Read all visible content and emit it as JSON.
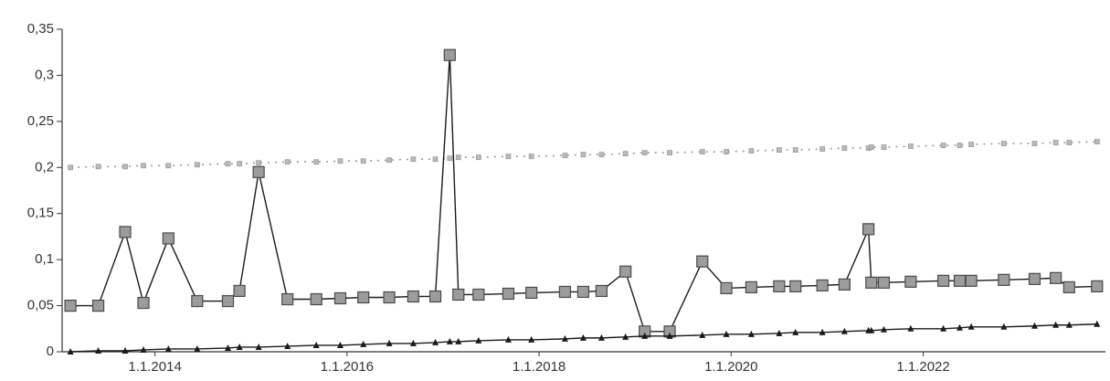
{
  "chart_data": {
    "type": "line",
    "x": [
      2013.12,
      2013.41,
      2013.69,
      2013.88,
      2014.14,
      2014.44,
      2014.76,
      2014.88,
      2015.08,
      2015.38,
      2015.68,
      2015.93,
      2016.17,
      2016.44,
      2016.69,
      2016.92,
      2017.07,
      2017.16,
      2017.37,
      2017.68,
      2017.92,
      2018.27,
      2018.46,
      2018.65,
      2018.9,
      2019.1,
      2019.36,
      2019.7,
      2019.95,
      2020.21,
      2020.5,
      2020.67,
      2020.95,
      2021.18,
      2021.43,
      2021.46,
      2021.59,
      2021.87,
      2022.21,
      2022.38,
      2022.5,
      2022.84,
      2023.16,
      2023.38,
      2023.52,
      2023.81
    ],
    "series": [
      {
        "color": "#999999",
        "line_style": "dotted",
        "marker": "dot",
        "values": [
          0.2,
          0.201,
          0.201,
          0.202,
          0.202,
          0.203,
          0.204,
          0.204,
          0.205,
          0.206,
          0.206,
          0.207,
          0.207,
          0.208,
          0.209,
          0.209,
          0.21,
          0.211,
          0.211,
          0.212,
          0.212,
          0.213,
          0.214,
          0.214,
          0.215,
          0.216,
          0.216,
          0.217,
          0.217,
          0.218,
          0.219,
          0.219,
          0.22,
          0.221,
          0.221,
          0.222,
          0.222,
          0.223,
          0.224,
          0.224,
          0.225,
          0.226,
          0.226,
          0.227,
          0.227,
          0.228
        ]
      },
      {
        "color": "#1a1a1a",
        "line_style": "solid",
        "marker": "square",
        "values": [
          0.05,
          0.05,
          0.13,
          0.053,
          0.123,
          0.055,
          0.055,
          0.066,
          0.195,
          0.057,
          0.057,
          0.058,
          0.059,
          0.059,
          0.06,
          0.06,
          0.322,
          0.062,
          0.062,
          0.063,
          0.064,
          0.065,
          0.065,
          0.066,
          0.087,
          0.022,
          0.022,
          0.098,
          0.069,
          0.07,
          0.071,
          0.071,
          0.072,
          0.073,
          0.133,
          0.075,
          0.075,
          0.076,
          0.077,
          0.077,
          0.077,
          0.078,
          0.079,
          0.08,
          0.07,
          0.071
        ]
      },
      {
        "color": "#1a1a1a",
        "line_style": "solid",
        "marker": "triangle",
        "values": [
          0,
          0.001,
          0.001,
          0.002,
          0.003,
          0.003,
          0.004,
          0.005,
          0.005,
          0.006,
          0.007,
          0.007,
          0.008,
          0.009,
          0.009,
          0.01,
          0.011,
          0.011,
          0.012,
          0.013,
          0.013,
          0.014,
          0.015,
          0.015,
          0.016,
          0.017,
          0.017,
          0.018,
          0.019,
          0.019,
          0.02,
          0.021,
          0.021,
          0.022,
          0.023,
          0.023,
          0.024,
          0.025,
          0.025,
          0.026,
          0.027,
          0.027,
          0.028,
          0.029,
          0.029,
          0.03
        ]
      }
    ],
    "xlim": [
      2013.1,
      2023.85
    ],
    "xticks": [
      {
        "value": 2014,
        "label": "1.1.2014"
      },
      {
        "value": 2016,
        "label": "1.1.2016"
      },
      {
        "value": 2018,
        "label": "1.1.2018"
      },
      {
        "value": 2020,
        "label": "1.1.2020"
      },
      {
        "value": 2022,
        "label": "1.1.2022"
      }
    ],
    "ylim": [
      0,
      0.35
    ],
    "yticks": [
      0,
      {
        "value": 0.05,
        "label": "0,05"
      },
      {
        "value": 0.1,
        "label": "0,1"
      },
      {
        "value": 0.15,
        "label": "0,15"
      },
      {
        "value": 0.2,
        "label": "0,2"
      },
      {
        "value": 0.25,
        "label": "0,25"
      },
      {
        "value": 0.3,
        "label": "0,3"
      },
      {
        "value": 0.35,
        "label": "0,35"
      }
    ],
    "grid": false
  }
}
